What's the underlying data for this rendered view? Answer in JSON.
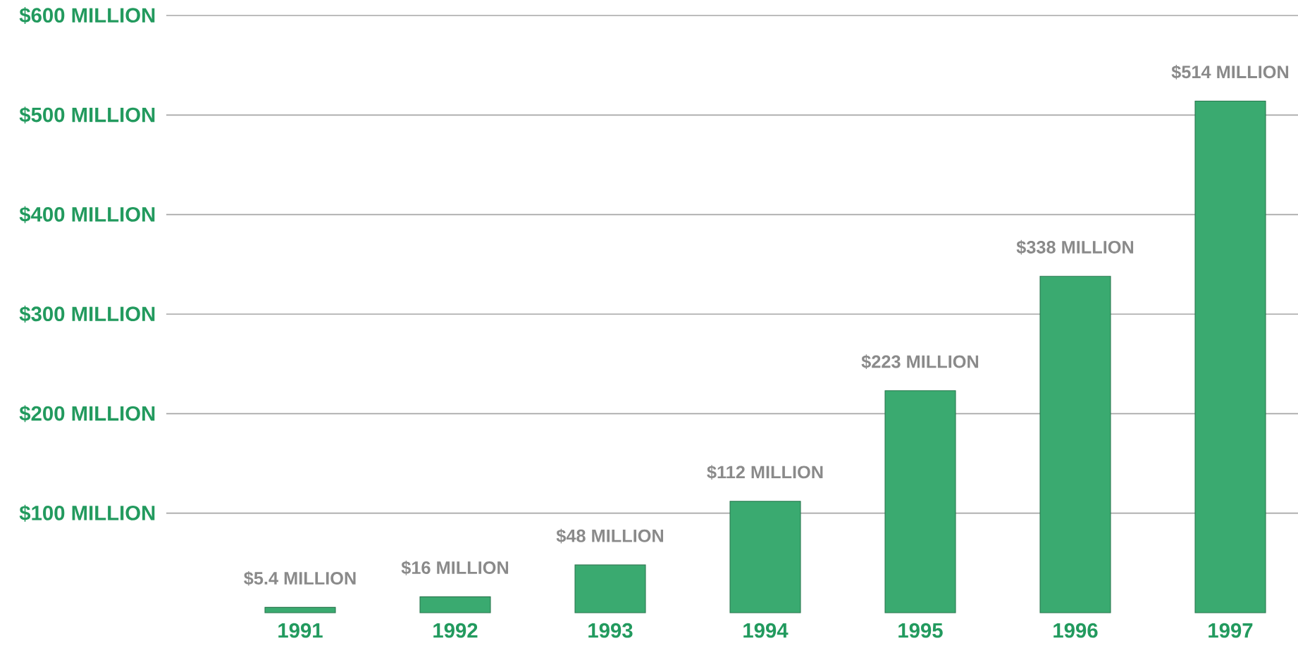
{
  "chart_data": {
    "type": "bar",
    "categories": [
      "1991",
      "1992",
      "1993",
      "1994",
      "1995",
      "1996",
      "1997"
    ],
    "values": [
      5.4,
      16,
      48,
      112,
      223,
      338,
      514
    ],
    "value_labels": [
      "$5.4 MILLION",
      "$16 MILLION",
      "$48 MILLION",
      "$112 MILLION",
      "$223 MILLION",
      "$338 MILLION",
      "$514 MILLION"
    ],
    "color": "#3aaa70",
    "ylim": [
      0,
      600
    ],
    "yticks": [
      {
        "value": 100,
        "label": "$100 MILLION"
      },
      {
        "value": 200,
        "label": "$200 MILLION"
      },
      {
        "value": 300,
        "label": "$300 MILLION"
      },
      {
        "value": 400,
        "label": "$400 MILLION"
      },
      {
        "value": 500,
        "label": "$500 MILLION"
      },
      {
        "value": 600,
        "label": "$600 MILLION"
      }
    ],
    "grid": "y"
  }
}
